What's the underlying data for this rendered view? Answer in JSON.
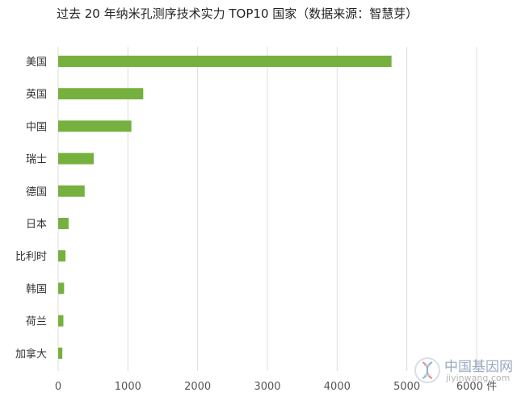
{
  "title": "过去 20 年纳米孔测序技术实力 TOP10 国家（数据来源：智慧芽）",
  "chart_data": {
    "type": "bar",
    "orientation": "horizontal",
    "title": "过去 20 年纳米孔测序技术实力 TOP10 国家（数据来源：智慧芽）",
    "categories": [
      "美国",
      "英国",
      "中国",
      "瑞士",
      "德国",
      "日本",
      "比利时",
      "韩国",
      "荷兰",
      "加拿大"
    ],
    "values": [
      4780,
      1220,
      1050,
      510,
      380,
      150,
      105,
      85,
      75,
      60
    ],
    "xlim": [
      0,
      6000
    ],
    "xticks": [
      0,
      1000,
      2000,
      3000,
      4000,
      5000,
      6000
    ],
    "xunit": "件",
    "grid": "vertical",
    "legend": "none",
    "bar_color": "#76b13f"
  },
  "watermark": {
    "name": "中国基因网",
    "url": "jiyinwang.com"
  }
}
